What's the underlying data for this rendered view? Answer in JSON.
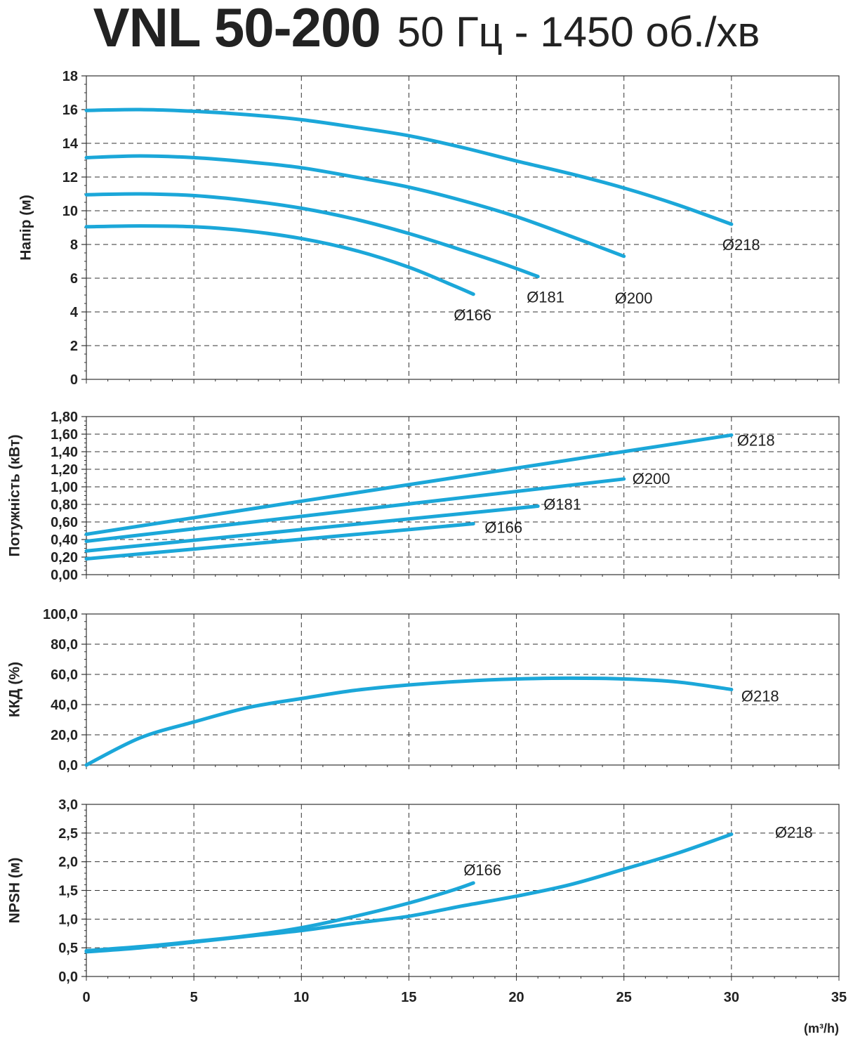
{
  "title": "VNL 50-200",
  "subtitle": "50 Гц - 1450 об./хв",
  "colors": {
    "curve": "#1ba7d9",
    "grid": "#333333",
    "text": "#222222"
  },
  "chart_data": [
    {
      "type": "line",
      "ylabel": "Напір (м)",
      "xlim": [
        0,
        35
      ],
      "ylim": [
        0,
        18
      ],
      "yticks": [
        "0",
        "2",
        "4",
        "6",
        "8",
        "10",
        "12",
        "14",
        "16",
        "18"
      ],
      "grid": true,
      "series": [
        {
          "name": "Ø218",
          "x": [
            0,
            2.5,
            5,
            7.5,
            10,
            12.5,
            15,
            17.5,
            20,
            22.5,
            25,
            27.5,
            30
          ],
          "y": [
            15.95,
            16.0,
            15.9,
            15.7,
            15.4,
            14.95,
            14.45,
            13.75,
            12.95,
            12.2,
            11.35,
            10.35,
            9.2
          ]
        },
        {
          "name": "Ø200",
          "x": [
            0,
            2.5,
            5,
            7.5,
            10,
            12.5,
            15,
            17.5,
            20,
            22.5,
            25
          ],
          "y": [
            13.15,
            13.25,
            13.15,
            12.9,
            12.55,
            12.0,
            11.4,
            10.6,
            9.65,
            8.5,
            7.3
          ]
        },
        {
          "name": "Ø181",
          "x": [
            0,
            2.5,
            5,
            7.5,
            10,
            12.5,
            15,
            17.5,
            19.5,
            21
          ],
          "y": [
            10.95,
            11.0,
            10.9,
            10.6,
            10.15,
            9.5,
            8.65,
            7.65,
            6.8,
            6.1
          ]
        },
        {
          "name": "Ø166",
          "x": [
            0,
            2.5,
            5,
            7.5,
            10,
            12.5,
            15,
            17,
            18
          ],
          "y": [
            9.05,
            9.1,
            9.05,
            8.8,
            8.35,
            7.65,
            6.65,
            5.6,
            5.05
          ]
        }
      ]
    },
    {
      "type": "line",
      "ylabel": "Потужність (кВт)",
      "xlim": [
        0,
        35
      ],
      "ylim": [
        0,
        1.8
      ],
      "yticks": [
        "0,00",
        "0,20",
        "0,40",
        "0,60",
        "0,80",
        "1,00",
        "1,20",
        "1,40",
        "1,60",
        "1,80"
      ],
      "grid": true,
      "series": [
        {
          "name": "Ø218",
          "x": [
            0,
            30
          ],
          "y": [
            0.46,
            1.59
          ]
        },
        {
          "name": "Ø200",
          "x": [
            0,
            25
          ],
          "y": [
            0.38,
            1.09
          ]
        },
        {
          "name": "Ø181",
          "x": [
            0,
            21
          ],
          "y": [
            0.27,
            0.78
          ]
        },
        {
          "name": "Ø166",
          "x": [
            0,
            18
          ],
          "y": [
            0.18,
            0.58
          ]
        }
      ]
    },
    {
      "type": "line",
      "ylabel": "ККД (%)",
      "xlim": [
        0,
        35
      ],
      "ylim": [
        0,
        100
      ],
      "yticks": [
        "0,0",
        "20,0",
        "40,0",
        "60,0",
        "80,0",
        "100,0"
      ],
      "grid": true,
      "series": [
        {
          "name": "Ø218",
          "x": [
            0,
            2.5,
            5,
            7.5,
            10,
            12.5,
            15,
            17.5,
            20,
            22.5,
            25,
            27.5,
            30
          ],
          "y": [
            0,
            18,
            28.5,
            38,
            44,
            49.5,
            53,
            55.5,
            57,
            57.5,
            57,
            55,
            50
          ]
        }
      ]
    },
    {
      "type": "line",
      "ylabel": "NPSH (м)",
      "xlabel": "(m³/h)",
      "xlim": [
        0,
        35
      ],
      "xticks": [
        "0",
        "5",
        "10",
        "15",
        "20",
        "25",
        "30",
        "35"
      ],
      "ylim": [
        0,
        3
      ],
      "yticks": [
        "0,0",
        "0,5",
        "1,0",
        "1,5",
        "2,0",
        "2,5",
        "3,0"
      ],
      "grid": true,
      "series": [
        {
          "name": "Ø218",
          "x": [
            0,
            2.5,
            5,
            7.5,
            10,
            12.5,
            15,
            17.5,
            20,
            22.5,
            25,
            27.5,
            30
          ],
          "y": [
            0.43,
            0.5,
            0.6,
            0.7,
            0.8,
            0.93,
            1.05,
            1.23,
            1.4,
            1.6,
            1.87,
            2.15,
            2.48
          ]
        },
        {
          "name": "Ø166",
          "x": [
            0,
            2.5,
            5,
            7.5,
            10,
            12.5,
            15,
            17,
            18
          ],
          "y": [
            0.45,
            0.52,
            0.61,
            0.71,
            0.85,
            1.05,
            1.28,
            1.5,
            1.63
          ]
        }
      ]
    }
  ]
}
